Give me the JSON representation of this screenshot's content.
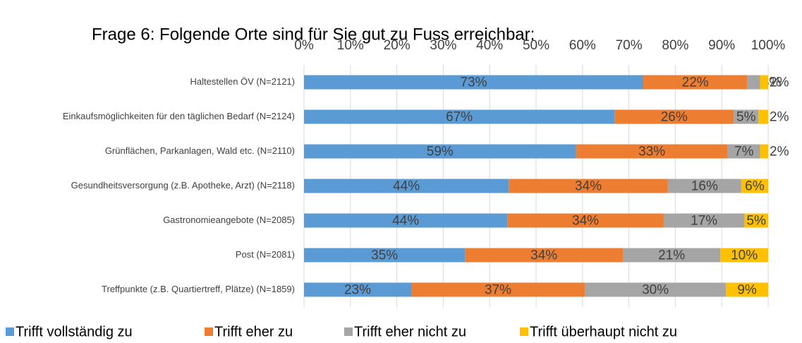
{
  "chart_data": {
    "type": "stacked_bar_horizontal",
    "title": "Frage 6: Folgende Orte sind für Sie gut zu Fuss erreichbar:",
    "categories": [
      "Haltestellen ÖV (N=2121)",
      "Einkaufsmöglichkeiten für den täglichen Bedarf (N=2124)",
      "Grünflächen, Parkanlagen, Wald etc. (N=2110)",
      "Gesundheitsversorgung (z.B. Apotheke, Arzt) (N=2118)",
      "Gastronomieangebote (N=2085)",
      "Post (N=2081)",
      "Treffpunkte (z.B. Quartiertreff, Plätze) (N=1859)"
    ],
    "series": [
      {
        "name": "Trifft vollständig zu",
        "color": "#5b9bd5",
        "values": [
          73.1,
          66.9,
          58.6,
          44.1,
          43.8,
          34.7,
          23.1
        ],
        "value_labels": [
          "73%",
          "67%",
          "59%",
          "44%",
          "44%",
          "35%",
          "23%"
        ]
      },
      {
        "name": "Trifft eher zu",
        "color": "#ed7d31",
        "values": [
          22.4,
          25.7,
          32.7,
          34.3,
          33.7,
          34.0,
          37.4
        ],
        "value_labels": [
          "22%",
          "26%",
          "33%",
          "34%",
          "34%",
          "34%",
          "37%"
        ]
      },
      {
        "name": "Trifft eher nicht zu",
        "color": "#a5a5a5",
        "values": [
          2.8,
          5.3,
          7.0,
          15.8,
          17.4,
          21.0,
          30.4
        ],
        "value_labels": [
          "3%",
          "5%",
          "7%",
          "16%",
          "17%",
          "21%",
          "30%"
        ]
      },
      {
        "name": "Trifft überhaupt nicht zu",
        "color": "#ffc000",
        "values": [
          1.7,
          2.1,
          1.7,
          5.8,
          5.1,
          10.3,
          9.1
        ],
        "value_labels": [
          "2%",
          "2%",
          "2%",
          "6%",
          "5%",
          "10%",
          "9%"
        ]
      }
    ],
    "xlim": [
      0,
      100
    ],
    "xticks": [
      {
        "value": 0,
        "label": "0%"
      },
      {
        "value": 10,
        "label": "10%"
      },
      {
        "value": 20,
        "label": "20%"
      },
      {
        "value": 30,
        "label": "30%"
      },
      {
        "value": 40,
        "label": "40%"
      },
      {
        "value": 50,
        "label": "50%"
      },
      {
        "value": 60,
        "label": "60%"
      },
      {
        "value": 70,
        "label": "70%"
      },
      {
        "value": 80,
        "label": "80%"
      },
      {
        "value": 90,
        "label": "90%"
      },
      {
        "value": 100,
        "label": "100%"
      }
    ],
    "grid": true,
    "legend": "bottom"
  }
}
